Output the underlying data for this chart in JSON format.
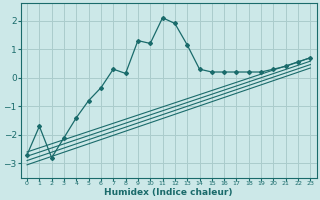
{
  "xlabel": "Humidex (Indice chaleur)",
  "ylabel": "",
  "bg_color": "#cce8e8",
  "grid_color": "#aacccc",
  "line_color": "#1a6b6b",
  "xlim": [
    -0.5,
    23.5
  ],
  "ylim": [
    -3.5,
    2.6
  ],
  "xticks": [
    0,
    1,
    2,
    3,
    4,
    5,
    6,
    7,
    8,
    9,
    10,
    11,
    12,
    13,
    14,
    15,
    16,
    17,
    18,
    19,
    20,
    21,
    22,
    23
  ],
  "yticks": [
    -3,
    -2,
    -1,
    0,
    1,
    2
  ],
  "curve_x": [
    0,
    1,
    2,
    3,
    4,
    5,
    6,
    7,
    8,
    9,
    10,
    11,
    12,
    13,
    14,
    15,
    16,
    17,
    18,
    19,
    20,
    21,
    22,
    23
  ],
  "curve_y": [
    -2.7,
    -1.7,
    -2.8,
    -2.1,
    -1.4,
    -0.8,
    -0.35,
    0.3,
    0.15,
    1.3,
    1.2,
    2.1,
    1.9,
    1.15,
    0.3,
    0.2,
    0.2,
    0.2,
    0.2,
    0.2,
    0.3,
    0.4,
    0.55,
    0.7
  ],
  "line1_x": [
    0,
    23
  ],
  "line1_y": [
    -2.6,
    0.7
  ],
  "line2_x": [
    0,
    23
  ],
  "line2_y": [
    -2.75,
    0.58
  ],
  "line3_x": [
    0,
    23
  ],
  "line3_y": [
    -2.9,
    0.46
  ],
  "line4_x": [
    0,
    23
  ],
  "line4_y": [
    -3.05,
    0.34
  ]
}
